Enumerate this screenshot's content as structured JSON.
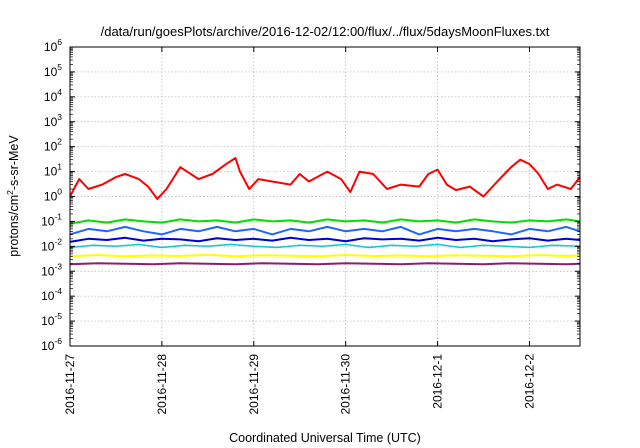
{
  "chart_data": {
    "type": "line",
    "title": "/data/run/goesPlots/archive/2016-12-02/12:00/flux/../flux/5daysMoonFluxes.txt",
    "xlabel": "Coordinated Universal Time (UTC)",
    "ylabel_parts": [
      "protons/cm",
      "2",
      "-s-sr-MeV"
    ],
    "yscale": "log",
    "ylim": [
      1e-06,
      1000000.0
    ],
    "xlim_days": [
      0,
      5.55
    ],
    "grid": true,
    "legend": "none",
    "x_ticks": [
      {
        "label": "2016-11-27",
        "day": 0
      },
      {
        "label": "2016-11-28",
        "day": 1
      },
      {
        "label": "2016-11-29",
        "day": 2
      },
      {
        "label": "2016-11-30",
        "day": 3
      },
      {
        "label": "2016-12-1",
        "day": 4
      },
      {
        "label": "2016-12-2",
        "day": 5
      }
    ],
    "y_ticks": [
      {
        "base": "10",
        "exp": "6",
        "value": 1000000.0
      },
      {
        "base": "10",
        "exp": "5",
        "value": 100000.0
      },
      {
        "base": "10",
        "exp": "4",
        "value": 10000.0
      },
      {
        "base": "10",
        "exp": "3",
        "value": 1000.0
      },
      {
        "base": "10",
        "exp": "2",
        "value": 100.0
      },
      {
        "base": "10",
        "exp": "1",
        "value": 10.0
      },
      {
        "base": "10",
        "exp": "0",
        "value": 1.0
      },
      {
        "base": "10",
        "exp": "-1",
        "value": 0.1
      },
      {
        "base": "10",
        "exp": "-2",
        "value": 0.01
      },
      {
        "base": "10",
        "exp": "-3",
        "value": 0.001
      },
      {
        "base": "10",
        "exp": "-4",
        "value": 0.0001
      },
      {
        "base": "10",
        "exp": "-5",
        "value": 1e-05
      },
      {
        "base": "10",
        "exp": "-6",
        "value": 1e-06
      }
    ],
    "series": [
      {
        "color": "#ff0000",
        "width": 2,
        "x": [
          0,
          0.1,
          0.2,
          0.35,
          0.5,
          0.6,
          0.75,
          0.85,
          0.95,
          1.05,
          1.2,
          1.4,
          1.55,
          1.7,
          1.8,
          1.85,
          1.95,
          2.05,
          2.2,
          2.4,
          2.5,
          2.6,
          2.8,
          2.95,
          3.05,
          3.15,
          3.3,
          3.45,
          3.6,
          3.8,
          3.9,
          4.0,
          4.1,
          4.2,
          4.35,
          4.5,
          4.65,
          4.8,
          4.9,
          5.0,
          5.1,
          5.2,
          5.3,
          5.45,
          5.55
        ],
        "y": [
          1.0,
          5.0,
          2.0,
          3.0,
          6.0,
          8.0,
          5.0,
          2.5,
          0.8,
          2.0,
          15.0,
          5.0,
          8.0,
          20.0,
          35.0,
          10.0,
          2.0,
          5.0,
          4.0,
          3.0,
          8.0,
          4.0,
          10.0,
          5.0,
          1.5,
          10.0,
          8.0,
          2.0,
          3.0,
          2.5,
          8.0,
          12.0,
          3.0,
          1.8,
          2.5,
          1.0,
          4.0,
          15.0,
          30.0,
          20.0,
          8.0,
          2.0,
          3.0,
          2.0,
          6.0
        ]
      },
      {
        "color": "#00e000",
        "width": 2,
        "x": [
          0,
          0.2,
          0.4,
          0.6,
          0.8,
          1.0,
          1.2,
          1.4,
          1.6,
          1.8,
          2.0,
          2.2,
          2.4,
          2.6,
          2.8,
          3.0,
          3.2,
          3.4,
          3.6,
          3.8,
          4.0,
          4.2,
          4.4,
          4.6,
          4.8,
          5.0,
          5.2,
          5.4,
          5.55
        ],
        "y": [
          0.08,
          0.11,
          0.09,
          0.12,
          0.1,
          0.09,
          0.12,
          0.1,
          0.11,
          0.09,
          0.12,
          0.1,
          0.11,
          0.09,
          0.12,
          0.1,
          0.11,
          0.09,
          0.12,
          0.1,
          0.11,
          0.09,
          0.12,
          0.1,
          0.09,
          0.11,
          0.1,
          0.12,
          0.1
        ]
      },
      {
        "color": "#1e66ff",
        "width": 2,
        "x": [
          0,
          0.2,
          0.4,
          0.6,
          0.8,
          1.0,
          1.2,
          1.4,
          1.6,
          1.8,
          2.0,
          2.2,
          2.4,
          2.6,
          2.8,
          3.0,
          3.2,
          3.4,
          3.6,
          3.8,
          4.0,
          4.2,
          4.4,
          4.6,
          4.8,
          5.0,
          5.2,
          5.4,
          5.55
        ],
        "y": [
          0.03,
          0.05,
          0.04,
          0.06,
          0.04,
          0.03,
          0.05,
          0.04,
          0.06,
          0.04,
          0.05,
          0.03,
          0.05,
          0.04,
          0.06,
          0.04,
          0.05,
          0.04,
          0.06,
          0.03,
          0.05,
          0.04,
          0.05,
          0.04,
          0.03,
          0.05,
          0.04,
          0.06,
          0.04
        ]
      },
      {
        "color": "#0000d0",
        "width": 2,
        "x": [
          0,
          0.2,
          0.4,
          0.6,
          0.8,
          1.0,
          1.2,
          1.4,
          1.6,
          1.8,
          2.0,
          2.2,
          2.4,
          2.6,
          2.8,
          3.0,
          3.2,
          3.4,
          3.6,
          3.8,
          4.0,
          4.2,
          4.4,
          4.6,
          4.8,
          5.0,
          5.2,
          5.4,
          5.55
        ],
        "y": [
          0.015,
          0.02,
          0.018,
          0.022,
          0.017,
          0.02,
          0.019,
          0.016,
          0.021,
          0.018,
          0.02,
          0.017,
          0.022,
          0.018,
          0.02,
          0.016,
          0.021,
          0.019,
          0.02,
          0.017,
          0.022,
          0.018,
          0.02,
          0.016,
          0.019,
          0.021,
          0.017,
          0.02,
          0.018
        ]
      },
      {
        "color": "#00d0d0",
        "width": 1.5,
        "x": [
          0,
          0.25,
          0.5,
          0.75,
          1.0,
          1.25,
          1.5,
          1.75,
          2.0,
          2.25,
          2.5,
          2.75,
          3.0,
          3.25,
          3.5,
          3.75,
          4.0,
          4.25,
          4.5,
          4.75,
          5.0,
          5.25,
          5.55
        ],
        "y": [
          0.009,
          0.011,
          0.01,
          0.012,
          0.009,
          0.011,
          0.01,
          0.012,
          0.01,
          0.009,
          0.011,
          0.01,
          0.012,
          0.009,
          0.011,
          0.01,
          0.012,
          0.009,
          0.011,
          0.01,
          0.009,
          0.011,
          0.01
        ]
      },
      {
        "color": "#ffff00",
        "width": 2,
        "x": [
          0,
          0.3,
          0.6,
          0.9,
          1.2,
          1.5,
          1.8,
          2.1,
          2.4,
          2.7,
          3.0,
          3.3,
          3.6,
          3.9,
          4.2,
          4.5,
          4.8,
          5.1,
          5.4,
          5.55
        ],
        "y": [
          0.004,
          0.0045,
          0.004,
          0.0043,
          0.0041,
          0.0046,
          0.004,
          0.0044,
          0.0042,
          0.004,
          0.0045,
          0.0041,
          0.0043,
          0.004,
          0.0044,
          0.0042,
          0.004,
          0.0045,
          0.0041,
          0.0043
        ]
      },
      {
        "color": "#8b1f6a",
        "width": 2,
        "x": [
          0,
          0.3,
          0.6,
          0.9,
          1.2,
          1.5,
          1.8,
          2.1,
          2.4,
          2.7,
          3.0,
          3.3,
          3.6,
          3.9,
          4.2,
          4.5,
          4.8,
          5.1,
          5.4,
          5.55
        ],
        "y": [
          0.0019,
          0.0021,
          0.002,
          0.0019,
          0.0021,
          0.002,
          0.0019,
          0.0021,
          0.002,
          0.0019,
          0.0021,
          0.002,
          0.0019,
          0.0021,
          0.002,
          0.0019,
          0.0021,
          0.002,
          0.0019,
          0.002
        ]
      }
    ]
  }
}
